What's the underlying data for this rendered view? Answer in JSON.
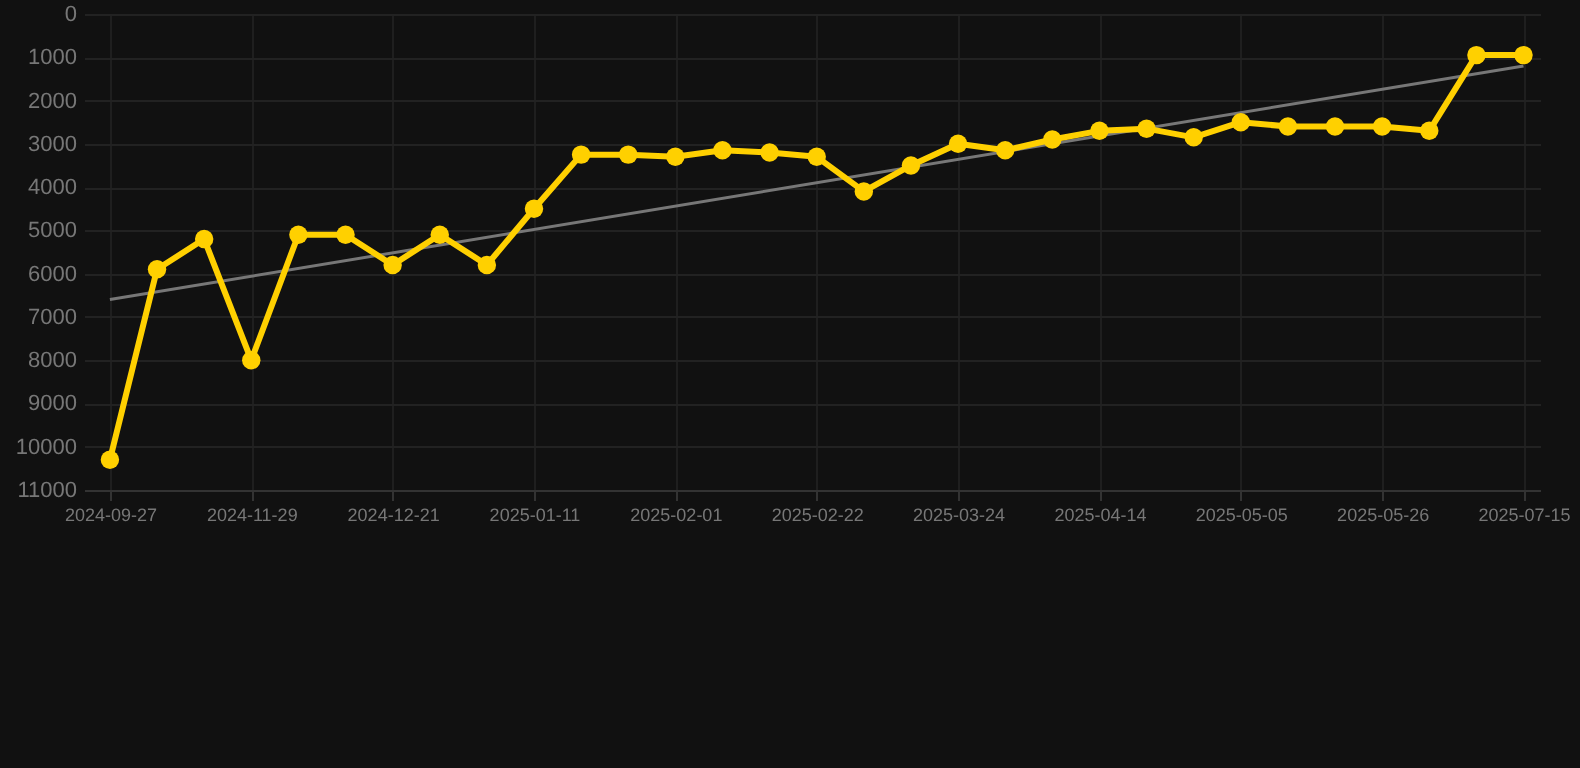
{
  "chart_data": {
    "type": "line",
    "categories": [
      "2024-09-27",
      null,
      null,
      "2024-11-29",
      null,
      null,
      "2024-12-21",
      null,
      null,
      "2025-01-11",
      null,
      null,
      "2025-02-01",
      null,
      null,
      "2025-02-22",
      null,
      null,
      "2025-03-24",
      null,
      null,
      "2025-04-14",
      null,
      null,
      "2025-05-05",
      null,
      null,
      "2025-05-26",
      null,
      null,
      "2025-07-15"
    ],
    "series": [
      {
        "color": "#ffd000",
        "values": [
          10300,
          5900,
          5200,
          8000,
          5100,
          5100,
          5800,
          5100,
          5800,
          4500,
          3250,
          3250,
          3300,
          3150,
          3200,
          3300,
          4100,
          3500,
          3000,
          3150,
          2900,
          2700,
          2650,
          2850,
          2500,
          2600,
          2600,
          2600,
          2700,
          950,
          950
        ]
      },
      {
        "type": "line",
        "color": "#777777",
        "marker": "none",
        "values": [
          6600,
          null,
          null,
          null,
          null,
          null,
          null,
          null,
          null,
          null,
          null,
          null,
          null,
          null,
          null,
          null,
          null,
          null,
          null,
          null,
          null,
          null,
          null,
          null,
          null,
          null,
          null,
          null,
          null,
          null,
          1200
        ]
      }
    ],
    "ylim": [
      11000,
      0
    ],
    "yticks": [
      0,
      1000,
      2000,
      3000,
      4000,
      5000,
      6000,
      7000,
      8000,
      9000,
      10000,
      11000
    ],
    "grid": true,
    "marker": "circle",
    "line_style": "solid"
  }
}
